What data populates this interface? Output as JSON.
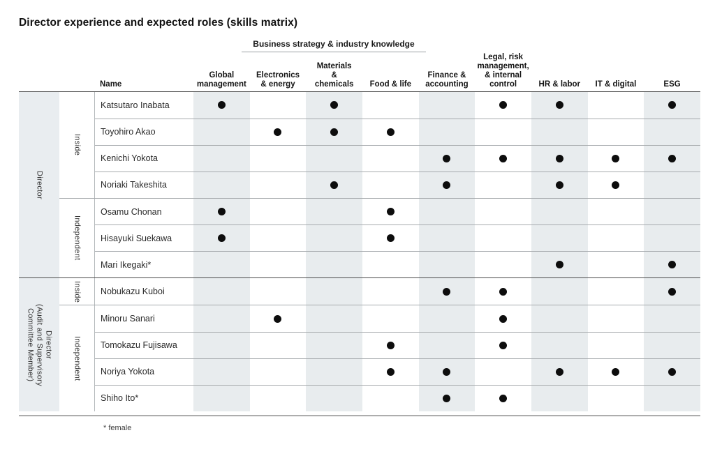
{
  "title": "Director experience and expected roles (skills matrix)",
  "footnote": "* female",
  "colors": {
    "band": "#e8ecee",
    "group_column": "#e9edf0",
    "dot": "#0d0d0d",
    "rule_dark": "#4a4a4a",
    "rule_light": "#a6aaad"
  },
  "table": {
    "span_header": "Business strategy & industry knowledge",
    "name_header": "Name",
    "columns": [
      {
        "label": "Global\nmanagement",
        "shaded": true
      },
      {
        "label": "Electronics\n& energy",
        "shaded": false
      },
      {
        "label": "Materials\n&\nchemicals",
        "shaded": true
      },
      {
        "label": "Food & life",
        "shaded": false
      },
      {
        "label": "Finance &\naccounting",
        "shaded": true
      },
      {
        "label": "Legal, risk\nmanagement,\n& internal\ncontrol",
        "shaded": false
      },
      {
        "label": "HR & labor",
        "shaded": true
      },
      {
        "label": "IT & digital",
        "shaded": false
      },
      {
        "label": "ESG",
        "shaded": true
      }
    ],
    "groups": [
      {
        "label": "Director",
        "sections": [
          {
            "label": "Inside",
            "rows": [
              {
                "name": "Katsutaro Inabata",
                "skills": [
                  1,
                  0,
                  1,
                  0,
                  0,
                  1,
                  1,
                  0,
                  1
                ]
              },
              {
                "name": "Toyohiro Akao",
                "skills": [
                  0,
                  1,
                  1,
                  1,
                  0,
                  0,
                  0,
                  0,
                  0
                ]
              },
              {
                "name": "Kenichi Yokota",
                "skills": [
                  0,
                  0,
                  0,
                  0,
                  1,
                  1,
                  1,
                  1,
                  1
                ]
              },
              {
                "name": "Noriaki Takeshita",
                "skills": [
                  0,
                  0,
                  1,
                  0,
                  1,
                  0,
                  1,
                  1,
                  0
                ]
              }
            ]
          },
          {
            "label": "Independent",
            "rows": [
              {
                "name": "Osamu Chonan",
                "skills": [
                  1,
                  0,
                  0,
                  1,
                  0,
                  0,
                  0,
                  0,
                  0
                ]
              },
              {
                "name": "Hisayuki Suekawa",
                "skills": [
                  1,
                  0,
                  0,
                  1,
                  0,
                  0,
                  0,
                  0,
                  0
                ]
              },
              {
                "name": "Mari Ikegaki*",
                "skills": [
                  0,
                  0,
                  0,
                  0,
                  0,
                  0,
                  1,
                  0,
                  1
                ]
              }
            ]
          }
        ]
      },
      {
        "label": "Director\n(Audit and Supervisory\nCommittee Member)",
        "sections": [
          {
            "label": "Inside",
            "rows": [
              {
                "name": "Nobukazu Kuboi",
                "skills": [
                  0,
                  0,
                  0,
                  0,
                  1,
                  1,
                  0,
                  0,
                  1
                ]
              }
            ]
          },
          {
            "label": "Independent",
            "rows": [
              {
                "name": "Minoru Sanari",
                "skills": [
                  0,
                  1,
                  0,
                  0,
                  0,
                  1,
                  0,
                  0,
                  0
                ]
              },
              {
                "name": "Tomokazu Fujisawa",
                "skills": [
                  0,
                  0,
                  0,
                  1,
                  0,
                  1,
                  0,
                  0,
                  0
                ]
              },
              {
                "name": "Noriya Yokota",
                "skills": [
                  0,
                  0,
                  0,
                  1,
                  1,
                  0,
                  1,
                  1,
                  1
                ]
              },
              {
                "name": "Shiho Ito*",
                "skills": [
                  0,
                  0,
                  0,
                  0,
                  1,
                  1,
                  0,
                  0,
                  0
                ]
              }
            ]
          }
        ]
      }
    ]
  }
}
